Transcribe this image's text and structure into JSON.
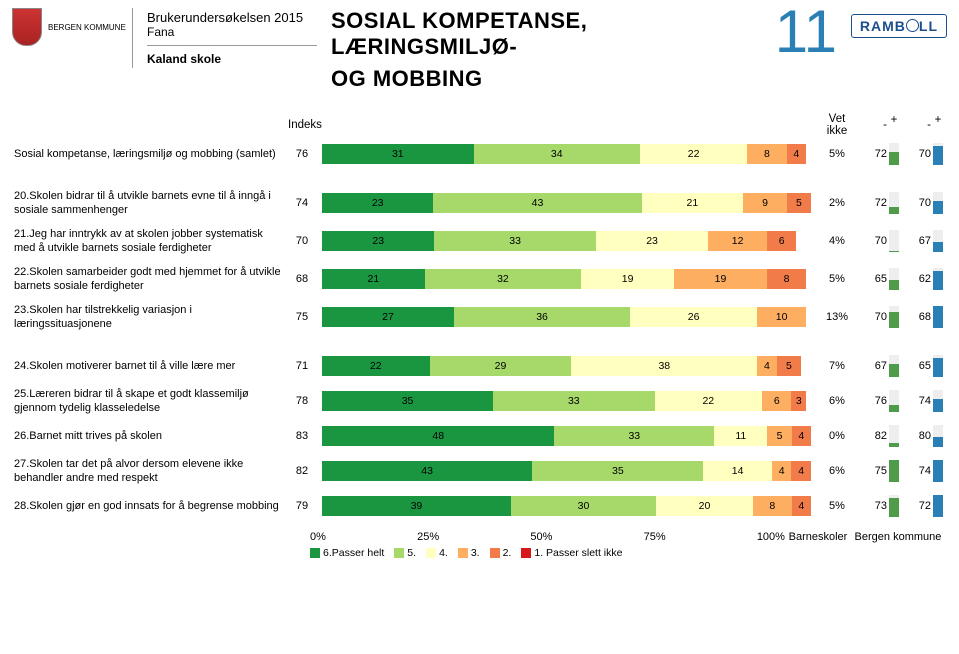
{
  "header": {
    "kommune": "BERGEN KOMMUNE",
    "survey": "Brukerundersøkelsen 2015",
    "district": "Fana",
    "school": "Kaland skole",
    "title_l1": "SOSIAL KOMPETANSE, LÆRINGSMILJØ-",
    "title_l2": "OG MOBBING",
    "page": "11",
    "brand": "RAMB",
    "brand2": "LL"
  },
  "columns": {
    "indeks": "Indeks",
    "vet_ikke": "Vet ikke",
    "minus1": "-",
    "plus1": "+",
    "minus2": "-",
    "plus2": "+"
  },
  "colors": {
    "c6": "#1a9641",
    "c5": "#a6d96a",
    "c4": "#ffffbf",
    "c3": "#fdae61",
    "c2": "#f17c4a",
    "c1": "#d7191c",
    "comp1": "#4e9c49",
    "comp2": "#2a7fb5"
  },
  "rows": [
    {
      "label": "Sosial kompetanse, læringsmiljø og mobbing  (samlet)",
      "indeks": 76,
      "segs": [
        31,
        34,
        22,
        8,
        4,
        0
      ],
      "vet": "5%",
      "c1n": 72,
      "c1b": 4,
      "c2n": 70,
      "c2b": 6,
      "gap_after": true
    },
    {
      "label": "20.Skolen bidrar til å utvikle barnets evne til å inngå i sosiale sammenhenger",
      "indeks": 74,
      "segs": [
        23,
        43,
        21,
        9,
        5,
        0
      ],
      "vet": "2%",
      "c1n": 72,
      "c1b": 2,
      "c2n": 70,
      "c2b": 4
    },
    {
      "label": "21.Jeg har inntrykk av at skolen jobber systematisk med å utvikle barnets sosiale ferdigheter",
      "indeks": 70,
      "segs": [
        23,
        33,
        23,
        12,
        6,
        0
      ],
      "vet": "4%",
      "c1n": 70,
      "c1b": 0,
      "c2n": 67,
      "c2b": 3
    },
    {
      "label": "22.Skolen samarbeider godt med hjemmet for å utvikle barnets sosiale ferdigheter",
      "indeks": 68,
      "segs": [
        21,
        32,
        19,
        19,
        8,
        0
      ],
      "vet": "5%",
      "c1n": 65,
      "c1b": 3,
      "c2n": 62,
      "c2b": 6
    },
    {
      "label": "23.Skolen har tilstrekkelig variasjon i læringssituasjonene",
      "indeks": 75,
      "segs": [
        27,
        36,
        26,
        10,
        0,
        0
      ],
      "vet": "13%",
      "c1n": 70,
      "c1b": 5,
      "c2n": 68,
      "c2b": 7,
      "gap_after": true
    },
    {
      "label": "24.Skolen motiverer barnet til å ville lære mer",
      "indeks": 71,
      "segs": [
        22,
        29,
        38,
        4,
        5,
        0
      ],
      "vet": "7%",
      "c1n": 67,
      "c1b": 4,
      "c2n": 65,
      "c2b": 6
    },
    {
      "label": "25.Læreren bidrar til å skape et godt klassemiljø gjennom tydelig klasseledelse",
      "indeks": 78,
      "segs": [
        35,
        33,
        22,
        6,
        3,
        0
      ],
      "vet": "6%",
      "c1n": 76,
      "c1b": 2,
      "c2n": 74,
      "c2b": 4
    },
    {
      "label": "26.Barnet mitt trives på skolen",
      "indeks": 83,
      "segs": [
        48,
        33,
        11,
        5,
        4,
        0
      ],
      "vet": "0%",
      "c1n": 82,
      "c1b": 1,
      "c2n": 80,
      "c2b": 3
    },
    {
      "label": "27.Skolen tar det på alvor dersom elevene ikke behandler andre med respekt",
      "indeks": 82,
      "segs": [
        43,
        35,
        14,
        4,
        4,
        0
      ],
      "vet": "6%",
      "c1n": 75,
      "c1b": 7,
      "c2n": 74,
      "c2b": 8
    },
    {
      "label": "28.Skolen gjør en god innsats for å begrense mobbing",
      "indeks": 79,
      "segs": [
        39,
        30,
        20,
        8,
        4,
        0
      ],
      "vet": "5%",
      "c1n": 73,
      "c1b": 6,
      "c2n": 72,
      "c2b": 7
    }
  ],
  "axis": [
    "0%",
    "25%",
    "50%",
    "75%",
    "100%"
  ],
  "legend": {
    "items": [
      "6.Passer helt",
      "5.",
      "4.",
      "3.",
      "2.",
      "1. Passer slett ikke"
    ],
    "comp1": "Barneskoler",
    "comp2": "Bergen kommune"
  }
}
